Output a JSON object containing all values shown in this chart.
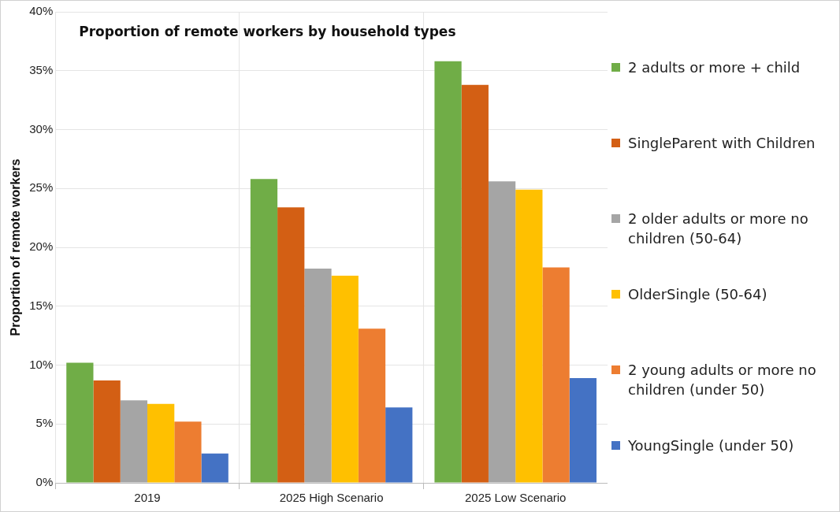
{
  "chart_data": {
    "type": "bar",
    "title": "Proportion of remote workers by household types",
    "ylabel": "Proportion of remote workers",
    "categories": [
      "2019",
      "2025 High Scenario",
      "2025 Low Scenario"
    ],
    "series": [
      {
        "name": "2 adults or more + child",
        "color": "#70ad47",
        "values": [
          10.2,
          25.8,
          35.8
        ]
      },
      {
        "name": "SingleParent with Children",
        "color": "#d35f14",
        "values": [
          8.7,
          23.4,
          33.8
        ]
      },
      {
        "name": "2 older adults or more no children (50-64)",
        "color": "#a5a5a5",
        "values": [
          7.0,
          18.2,
          25.6
        ]
      },
      {
        "name": "OlderSingle (50-64)",
        "color": "#ffc000",
        "values": [
          6.7,
          17.6,
          24.9
        ]
      },
      {
        "name": "2 young adults or more no children (under 50)",
        "color": "#ed7d31",
        "values": [
          5.2,
          13.1,
          18.3
        ]
      },
      {
        "name": "YoungSingle (under 50)",
        "color": "#4472c4",
        "values": [
          2.5,
          6.4,
          8.9
        ]
      }
    ],
    "ylim": [
      0,
      40
    ],
    "yticks": [
      {
        "value": 0,
        "label": "0%"
      },
      {
        "value": 5,
        "label": "5%"
      },
      {
        "value": 10,
        "label": "10%"
      },
      {
        "value": 15,
        "label": "15%"
      },
      {
        "value": 20,
        "label": "20%"
      },
      {
        "value": 25,
        "label": "25%"
      },
      {
        "value": 30,
        "label": "30%"
      },
      {
        "value": 35,
        "label": "35%"
      },
      {
        "value": 40,
        "label": "40%"
      }
    ],
    "grid": true,
    "legend": "right"
  }
}
